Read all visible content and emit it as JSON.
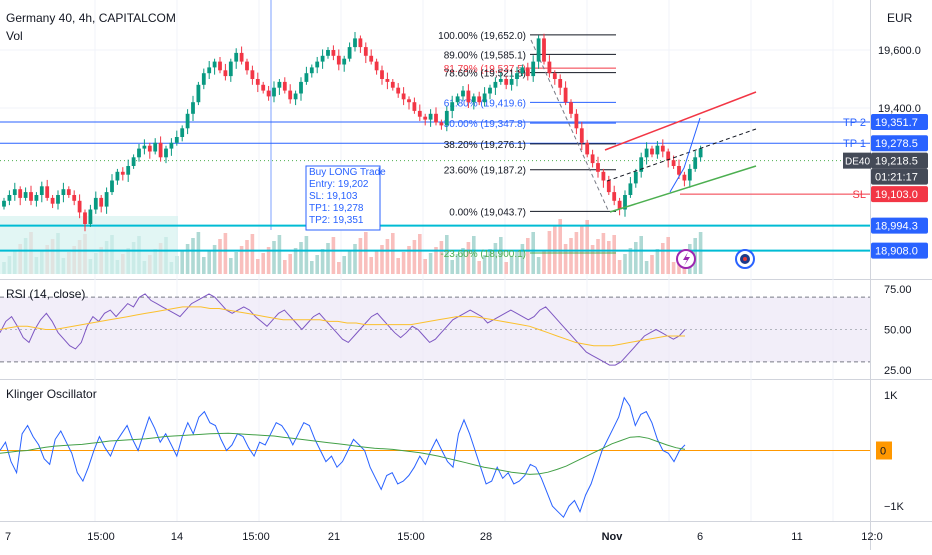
{
  "header": {
    "title": "Germany 40, 4h, CAPITALCOM",
    "vol_label": "Vol",
    "currency": "EUR"
  },
  "chart_data": {
    "type": "candlestick",
    "symbol": "Germany 40",
    "timeframe": "4h",
    "source": "CAPITALCOM",
    "x_tick_labels": [
      "7",
      "15:00",
      "14",
      "15:00",
      "21",
      "15:00",
      "28",
      "Nov",
      "6",
      "11",
      "12:0"
    ],
    "y_tick_labels": [
      "19,600.0",
      "19,400.0"
    ],
    "ylim": [
      18880,
      19700
    ],
    "closes": [
      19080,
      19100,
      19120,
      19090,
      19110,
      19080,
      19100,
      19130,
      19090,
      19070,
      19100,
      19120,
      19100,
      19080,
      19040,
      19000,
      19050,
      19090,
      19060,
      19110,
      19150,
      19180,
      19170,
      19200,
      19230,
      19260,
      19270,
      19250,
      19280,
      19230,
      19260,
      19280,
      19300,
      19330,
      19380,
      19420,
      19480,
      19520,
      19540,
      19560,
      19530,
      19510,
      19560,
      19590,
      19560,
      19530,
      19500,
      19480,
      19460,
      19440,
      19470,
      19490,
      19460,
      19430,
      19450,
      19490,
      19520,
      19540,
      19560,
      19580,
      19600,
      19580,
      19550,
      19570,
      19610,
      19640,
      19610,
      19580,
      19560,
      19530,
      19500,
      19490,
      19470,
      19450,
      19430,
      19420,
      19390,
      19370,
      19360,
      19380,
      19350,
      19340,
      19390,
      19420,
      19440,
      19460,
      19420,
      19440,
      19420,
      19450,
      19470,
      19490,
      19500,
      19480,
      19500,
      19520,
      19540,
      19510,
      19560,
      19640,
      19560,
      19520,
      19500,
      19470,
      19420,
      19380,
      19330,
      19280,
      19240,
      19210,
      19180,
      19150,
      19110,
      19080,
      19050,
      19100,
      19140,
      19180,
      19230,
      19260,
      19240,
      19270,
      19250,
      19220,
      19200,
      19170,
      19150,
      19190,
      19230,
      19260
    ],
    "fibonacci": [
      {
        "level": "100.00%",
        "price": "19,652.0"
      },
      {
        "level": "89.00%",
        "price": "19,585.1"
      },
      {
        "level": "81.79%",
        "price": "19,537.5"
      },
      {
        "level": "78.60%",
        "price": "19,521.8"
      },
      {
        "level": "61.80%",
        "price": "19,419.6"
      },
      {
        "level": "50.00%",
        "price": "19,347.8"
      },
      {
        "level": "38.20%",
        "price": "19,276.1"
      },
      {
        "level": "23.60%",
        "price": "19,187.2"
      },
      {
        "level": "0.00%",
        "price": "19,043.7"
      },
      {
        "level": "-23.60%",
        "price": "18,900.1"
      }
    ],
    "trade_box": {
      "title": "Buy LONG Trade",
      "lines": [
        "Entry: 19,202",
        "SL: 19,103",
        "TP1: 19,278",
        "TP2: 19,351"
      ]
    },
    "markers": [
      {
        "label": "TP 2",
        "value": "19,351.7",
        "color": "#2962ff"
      },
      {
        "label": "TP 1",
        "value": "19,278.5",
        "color": "#2962ff"
      },
      {
        "label": "DE40",
        "value": "19,218.5",
        "color": "#444a57"
      },
      {
        "label": "",
        "value": "01:21:17",
        "color": "#444a57"
      },
      {
        "label": "SL",
        "value": "19,103.0",
        "color": "#f23645"
      },
      {
        "label": "",
        "value": "18,994.3",
        "color": "#2962ff"
      },
      {
        "label": "",
        "value": "18,908.0",
        "color": "#2962ff"
      }
    ],
    "rsi": {
      "label": "RSI (14, close)",
      "y_ticks": [
        "75.00",
        "50.00",
        "25.00"
      ],
      "ylim": [
        20,
        80
      ],
      "bands": [
        70,
        30
      ],
      "values": [
        48,
        55,
        58,
        52,
        45,
        42,
        50,
        56,
        60,
        55,
        48,
        44,
        40,
        38,
        42,
        52,
        58,
        55,
        60,
        62,
        58,
        62,
        66,
        64,
        70,
        72,
        68,
        66,
        64,
        62,
        60,
        58,
        62,
        66,
        68,
        70,
        72,
        70,
        66,
        62,
        60,
        62,
        64,
        62,
        58,
        55,
        52,
        56,
        60,
        62,
        58,
        54,
        50,
        54,
        58,
        60,
        56,
        52,
        48,
        44,
        42,
        46,
        50,
        54,
        58,
        60,
        56,
        52,
        48,
        45,
        48,
        52,
        50,
        46,
        42,
        44,
        48,
        52,
        56,
        58,
        60,
        62,
        60,
        58,
        54,
        56,
        58,
        60,
        62,
        60,
        58,
        56,
        58,
        62,
        64,
        60,
        56,
        52,
        48,
        44,
        40,
        36,
        34,
        32,
        30,
        28,
        28,
        30,
        34,
        38,
        42,
        46,
        48,
        50,
        48,
        46,
        44,
        46,
        50
      ],
      "ma": [
        50,
        51,
        52,
        52,
        51,
        50,
        50,
        51,
        52,
        53,
        54,
        55,
        56,
        57,
        58,
        59,
        60,
        61,
        62,
        63,
        64,
        64,
        64,
        63,
        63,
        62,
        61,
        60,
        59,
        58,
        57,
        56,
        56,
        56,
        56,
        56,
        55,
        55,
        54,
        54,
        53,
        53,
        53,
        53,
        53,
        53,
        54,
        55,
        56,
        57,
        58,
        58,
        58,
        57,
        56,
        55,
        54,
        53,
        52,
        50,
        48,
        46,
        44,
        42,
        41,
        40,
        40,
        40,
        41,
        42,
        43,
        44,
        45,
        46,
        46,
        46
      ]
    },
    "klinger": {
      "label": "Klinger Oscillator",
      "y_ticks": [
        "1K",
        "0",
        "−1K"
      ],
      "ylim": [
        -1250,
        1250
      ],
      "values": [
        0,
        150,
        -200,
        -400,
        300,
        450,
        250,
        100,
        -150,
        -250,
        200,
        350,
        150,
        -50,
        -400,
        -550,
        -300,
        0,
        250,
        50,
        -100,
        150,
        300,
        450,
        200,
        0,
        300,
        600,
        400,
        150,
        300,
        100,
        -100,
        250,
        500,
        300,
        600,
        700,
        500,
        450,
        200,
        0,
        100,
        300,
        250,
        50,
        -100,
        150,
        100,
        300,
        500,
        450,
        300,
        100,
        300,
        500,
        450,
        200,
        0,
        -200,
        -100,
        -300,
        -200,
        0,
        200,
        100,
        0,
        -300,
        -500,
        -700,
        -450,
        -400,
        -600,
        -550,
        -450,
        -300,
        -100,
        -250,
        0,
        200,
        0,
        -200,
        -300,
        300,
        550,
        300,
        0,
        -300,
        -600,
        -550,
        -300,
        -500,
        -400,
        -600,
        -550,
        -450,
        -250,
        -300,
        -500,
        -750,
        -1000,
        -1100,
        -1200,
        -1000,
        -900,
        -1100,
        -800,
        -600,
        -300,
        0,
        200,
        400,
        600,
        950,
        800,
        450,
        650,
        700,
        500,
        200,
        0,
        -50,
        -200,
        0,
        100
      ],
      "signal": [
        -50,
        -30,
        -10,
        0,
        30,
        60,
        80,
        90,
        100,
        110,
        130,
        150,
        170,
        180,
        190,
        200,
        210,
        230,
        250,
        260,
        270,
        280,
        290,
        300,
        305,
        310,
        300,
        290,
        280,
        270,
        260,
        240,
        220,
        200,
        180,
        160,
        140,
        120,
        100,
        80,
        60,
        40,
        30,
        20,
        0,
        -20,
        -40,
        -70,
        -100,
        -140,
        -180,
        -220,
        -260,
        -300,
        -330,
        -360,
        -390,
        -410,
        -430,
        -420,
        -390,
        -340,
        -280,
        -200,
        -120,
        -40,
        40,
        120,
        180,
        240,
        250,
        220,
        160,
        100,
        50,
        20
      ]
    }
  }
}
